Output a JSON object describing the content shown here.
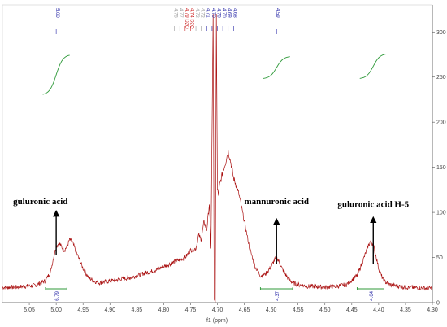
{
  "chart_data": {
    "type": "line",
    "xlabel": "f1 (ppm)",
    "ylabel": "",
    "xlim": [
      5.1,
      4.3
    ],
    "ylim": [
      0,
      330
    ],
    "x_reversed": true,
    "x_ticks": [
      "5.05",
      "5.00",
      "4.95",
      "4.90",
      "4.85",
      "4.80",
      "4.75",
      "4.70",
      "4.65",
      "4.60",
      "4.55",
      "4.50",
      "4.45",
      "4.40",
      "4.35",
      "4.30"
    ],
    "y_ticks": [
      "0",
      "50",
      "100",
      "150",
      "200",
      "250",
      "300"
    ],
    "spectrum_color": "#aa1111",
    "integral_color": "#2f9a3a",
    "spectrum": {
      "x": [
        5.1,
        5.08,
        5.06,
        5.04,
        5.02,
        5.01,
        5.005,
        5.0,
        4.995,
        4.99,
        4.985,
        4.98,
        4.975,
        4.97,
        4.96,
        4.95,
        4.94,
        4.93,
        4.92,
        4.9,
        4.88,
        4.86,
        4.84,
        4.82,
        4.8,
        4.78,
        4.76,
        4.75,
        4.74,
        4.735,
        4.73,
        4.725,
        4.72,
        4.715,
        4.712,
        4.708,
        4.706,
        4.704,
        4.702,
        4.7,
        4.698,
        4.696,
        4.694,
        4.69,
        4.685,
        4.68,
        4.675,
        4.67,
        4.665,
        4.66,
        4.65,
        4.64,
        4.63,
        4.62,
        4.61,
        4.6,
        4.595,
        4.59,
        4.585,
        4.58,
        4.57,
        4.56,
        4.55,
        4.54,
        4.53,
        4.52,
        4.5,
        4.48,
        4.46,
        4.44,
        4.43,
        4.42,
        4.415,
        4.41,
        4.405,
        4.4,
        4.395,
        4.39,
        4.38,
        4.37,
        4.36,
        4.35,
        4.34,
        4.32,
        4.3
      ],
      "y": [
        17,
        17,
        18,
        19,
        24,
        35,
        50,
        62,
        66,
        62,
        58,
        62,
        70,
        67,
        52,
        38,
        28,
        24,
        22,
        24,
        26,
        28,
        32,
        35,
        40,
        45,
        50,
        58,
        60,
        75,
        70,
        90,
        80,
        110,
        60,
        320,
        5,
        0,
        320,
        125,
        120,
        130,
        135,
        145,
        155,
        168,
        155,
        138,
        130,
        120,
        90,
        60,
        40,
        30,
        32,
        40,
        46,
        50,
        45,
        38,
        28,
        22,
        20,
        19,
        18,
        18,
        17,
        18,
        20,
        30,
        45,
        62,
        68,
        64,
        52,
        38,
        30,
        24,
        20,
        19,
        18,
        17,
        17,
        16,
        16
      ]
    },
    "peak_labels": [
      {
        "ppm": 5.0,
        "label": "5.00",
        "color": "#2a2aa8"
      },
      {
        "ppm": 4.78,
        "label": "4.78",
        "color": "#9a9a9a"
      },
      {
        "ppm": 4.77,
        "label": "4.77",
        "color": "#9a9a9a"
      },
      {
        "ppm": 4.76,
        "label": "4.79 D2O",
        "color": "#cc2222"
      },
      {
        "ppm": 4.75,
        "label": "4.74 D2O",
        "color": "#cc2222"
      },
      {
        "ppm": 4.74,
        "label": "4.72",
        "color": "#9a9a9a"
      },
      {
        "ppm": 4.73,
        "label": "4.72",
        "color": "#9a9a9a"
      },
      {
        "ppm": 4.72,
        "label": "4.71",
        "color": "#2a2aa8"
      },
      {
        "ppm": 4.71,
        "label": "4.70",
        "color": "#2a2aa8"
      },
      {
        "ppm": 4.7,
        "label": "4.70",
        "color": "#2a2aa8"
      },
      {
        "ppm": 4.69,
        "label": "4.70",
        "color": "#2a2aa8"
      },
      {
        "ppm": 4.68,
        "label": "4.69",
        "color": "#2a2aa8"
      },
      {
        "ppm": 4.67,
        "label": "4.68",
        "color": "#2a2aa8"
      },
      {
        "ppm": 4.59,
        "label": "4.59",
        "color": "#2a2aa8"
      }
    ],
    "integrals": [
      {
        "from": 5.02,
        "to": 4.98,
        "value": "6.79"
      },
      {
        "from": 4.62,
        "to": 4.56,
        "value": "4.37"
      },
      {
        "from": 4.44,
        "to": 4.39,
        "value": "4.04"
      }
    ],
    "integral_curves": [
      {
        "center": 5.0,
        "base": 230,
        "rise": 45
      },
      {
        "center": 4.59,
        "base": 248,
        "rise": 25
      },
      {
        "center": 4.41,
        "base": 248,
        "rise": 28
      }
    ],
    "annotations": [
      {
        "text": "guluronic acid",
        "label_ppm": 5.05,
        "label_y": 109,
        "arrow_ppm": 5.0,
        "arrow_from": 53,
        "arrow_to": 99
      },
      {
        "text": "mannuronic acid",
        "label_ppm": 4.59,
        "label_y": 109,
        "arrow_ppm": 4.59,
        "arrow_from": 43,
        "arrow_to": 90
      },
      {
        "text": "guluronic acid H-5",
        "label_ppm": 4.41,
        "label_y": 106,
        "arrow_ppm": 4.41,
        "arrow_from": 43,
        "arrow_to": 92
      }
    ]
  }
}
